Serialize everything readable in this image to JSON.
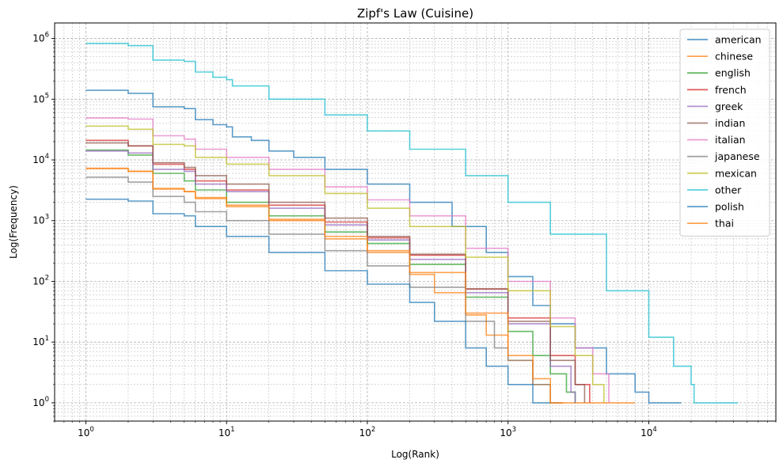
{
  "chart_data": {
    "type": "line",
    "title": "Zipf's Law (Cuisine)",
    "xlabel": "Log(Rank)",
    "ylabel": "Log(Frequency)",
    "x_scale": "log",
    "y_scale": "log",
    "xlim": [
      0.6,
      80000
    ],
    "ylim": [
      0.5,
      1800000
    ],
    "x_ticks": [
      {
        "value": 1,
        "base": "10",
        "exp": "0"
      },
      {
        "value": 10,
        "base": "10",
        "exp": "1"
      },
      {
        "value": 100,
        "base": "10",
        "exp": "2"
      },
      {
        "value": 1000,
        "base": "10",
        "exp": "3"
      },
      {
        "value": 10000,
        "base": "10",
        "exp": "4"
      }
    ],
    "y_ticks": [
      {
        "value": 1,
        "base": "10",
        "exp": "0"
      },
      {
        "value": 10,
        "base": "10",
        "exp": "1"
      },
      {
        "value": 100,
        "base": "10",
        "exp": "2"
      },
      {
        "value": 1000,
        "base": "10",
        "exp": "3"
      },
      {
        "value": 10000,
        "base": "10",
        "exp": "4"
      },
      {
        "value": 100000,
        "base": "10",
        "exp": "5"
      },
      {
        "value": 1000000,
        "base": "10",
        "exp": "6"
      }
    ],
    "grid": "major and minor, dashed",
    "legend_position": "top-right",
    "series": [
      {
        "name": "american",
        "color": "#1f77b4",
        "points": [
          [
            1,
            140000
          ],
          [
            2,
            125000
          ],
          [
            3,
            75000
          ],
          [
            5,
            70000
          ],
          [
            6,
            46000
          ],
          [
            8,
            38000
          ],
          [
            10,
            35000
          ],
          [
            11,
            24000
          ],
          [
            15,
            21000
          ],
          [
            20,
            14000
          ],
          [
            30,
            11000
          ],
          [
            50,
            7000
          ],
          [
            100,
            4000
          ],
          [
            200,
            2000
          ],
          [
            400,
            800
          ],
          [
            700,
            300
          ],
          [
            1000,
            120
          ],
          [
            1500,
            40
          ],
          [
            2000,
            20
          ],
          [
            3000,
            8
          ],
          [
            5000,
            3
          ],
          [
            8000,
            1.5
          ],
          [
            10000,
            1
          ],
          [
            17000,
            1
          ]
        ]
      },
      {
        "name": "chinese",
        "color": "#ff7f0e",
        "points": [
          [
            1,
            7200
          ],
          [
            2,
            6500
          ],
          [
            3,
            3300
          ],
          [
            5,
            3000
          ],
          [
            6,
            2300
          ],
          [
            10,
            1700
          ],
          [
            20,
            1000
          ],
          [
            50,
            500
          ],
          [
            100,
            300
          ],
          [
            200,
            130
          ],
          [
            300,
            65
          ],
          [
            500,
            28
          ],
          [
            700,
            13
          ],
          [
            1000,
            5
          ],
          [
            1500,
            2
          ],
          [
            2000,
            1
          ],
          [
            8000,
            1
          ]
        ]
      },
      {
        "name": "english",
        "color": "#2ca02c",
        "points": [
          [
            1,
            14500
          ],
          [
            2,
            12000
          ],
          [
            3,
            6000
          ],
          [
            5,
            4500
          ],
          [
            6,
            3200
          ],
          [
            10,
            2000
          ],
          [
            20,
            1200
          ],
          [
            50,
            650
          ],
          [
            100,
            420
          ],
          [
            200,
            190
          ],
          [
            500,
            55
          ],
          [
            1000,
            15
          ],
          [
            1500,
            6
          ],
          [
            2000,
            3
          ],
          [
            2600,
            1.5
          ],
          [
            3000,
            1
          ]
        ]
      },
      {
        "name": "french",
        "color": "#d62728",
        "points": [
          [
            1,
            21000
          ],
          [
            2,
            17000
          ],
          [
            3,
            8500
          ],
          [
            5,
            7000
          ],
          [
            6,
            4500
          ],
          [
            10,
            3200
          ],
          [
            20,
            1800
          ],
          [
            50,
            950
          ],
          [
            100,
            520
          ],
          [
            200,
            270
          ],
          [
            500,
            75
          ],
          [
            1000,
            25
          ],
          [
            2000,
            6
          ],
          [
            3000,
            2
          ],
          [
            3800,
            1
          ]
        ]
      },
      {
        "name": "greek",
        "color": "#9467bd",
        "points": [
          [
            1,
            14000
          ],
          [
            2,
            13000
          ],
          [
            3,
            7000
          ],
          [
            5,
            6500
          ],
          [
            6,
            4000
          ],
          [
            10,
            3000
          ],
          [
            20,
            1600
          ],
          [
            50,
            850
          ],
          [
            100,
            480
          ],
          [
            200,
            230
          ],
          [
            500,
            65
          ],
          [
            1000,
            20
          ],
          [
            2000,
            4
          ],
          [
            2800,
            1.5
          ],
          [
            3000,
            1
          ]
        ]
      },
      {
        "name": "indian",
        "color": "#8c564b",
        "points": [
          [
            1,
            19000
          ],
          [
            2,
            17000
          ],
          [
            3,
            9000
          ],
          [
            5,
            7500
          ],
          [
            6,
            5500
          ],
          [
            10,
            4000
          ],
          [
            20,
            2000
          ],
          [
            50,
            1100
          ],
          [
            100,
            550
          ],
          [
            200,
            280
          ],
          [
            500,
            75
          ],
          [
            1000,
            22
          ],
          [
            2000,
            5
          ],
          [
            3000,
            2
          ],
          [
            3500,
            1
          ]
        ]
      },
      {
        "name": "italian",
        "color": "#e377c2",
        "points": [
          [
            1,
            49000
          ],
          [
            2,
            47000
          ],
          [
            3,
            25000
          ],
          [
            5,
            22000
          ],
          [
            6,
            15000
          ],
          [
            10,
            11000
          ],
          [
            20,
            7000
          ],
          [
            50,
            3600
          ],
          [
            100,
            2200
          ],
          [
            200,
            1200
          ],
          [
            500,
            350
          ],
          [
            1000,
            100
          ],
          [
            2000,
            25
          ],
          [
            3000,
            8
          ],
          [
            4000,
            3
          ],
          [
            5200,
            1
          ]
        ]
      },
      {
        "name": "japanese",
        "color": "#7f7f7f",
        "points": [
          [
            1,
            5200
          ],
          [
            2,
            4300
          ],
          [
            3,
            2500
          ],
          [
            5,
            2000
          ],
          [
            6,
            1400
          ],
          [
            10,
            1000
          ],
          [
            20,
            600
          ],
          [
            50,
            320
          ],
          [
            100,
            180
          ],
          [
            200,
            80
          ],
          [
            500,
            22
          ],
          [
            800,
            8
          ],
          [
            1000,
            5
          ],
          [
            1500,
            2
          ],
          [
            2000,
            1
          ],
          [
            2400,
            1
          ]
        ]
      },
      {
        "name": "mexican",
        "color": "#bcbd22",
        "points": [
          [
            1,
            36000
          ],
          [
            2,
            32000
          ],
          [
            3,
            18000
          ],
          [
            5,
            17000
          ],
          [
            6,
            11000
          ],
          [
            10,
            8500
          ],
          [
            20,
            5500
          ],
          [
            50,
            2800
          ],
          [
            100,
            1600
          ],
          [
            200,
            800
          ],
          [
            500,
            250
          ],
          [
            1000,
            70
          ],
          [
            2000,
            18
          ],
          [
            3000,
            6
          ],
          [
            4000,
            2
          ],
          [
            4800,
            1
          ]
        ]
      },
      {
        "name": "other",
        "color": "#17becf",
        "points": [
          [
            1,
            830000
          ],
          [
            2,
            760000
          ],
          [
            3,
            440000
          ],
          [
            5,
            420000
          ],
          [
            6,
            280000
          ],
          [
            8,
            230000
          ],
          [
            10,
            210000
          ],
          [
            11,
            165000
          ],
          [
            20,
            100000
          ],
          [
            50,
            55000
          ],
          [
            100,
            30000
          ],
          [
            200,
            15000
          ],
          [
            500,
            5500
          ],
          [
            1000,
            2000
          ],
          [
            2000,
            600
          ],
          [
            5000,
            70
          ],
          [
            10000,
            12
          ],
          [
            15000,
            4
          ],
          [
            20000,
            2
          ],
          [
            21000,
            1
          ],
          [
            43000,
            1
          ]
        ]
      },
      {
        "name": "polish",
        "color": "#1f77b4",
        "points": [
          [
            1,
            2250
          ],
          [
            2,
            2100
          ],
          [
            3,
            1300
          ],
          [
            5,
            1200
          ],
          [
            6,
            800
          ],
          [
            10,
            550
          ],
          [
            20,
            300
          ],
          [
            50,
            150
          ],
          [
            100,
            90
          ],
          [
            200,
            45
          ],
          [
            300,
            22
          ],
          [
            500,
            8
          ],
          [
            700,
            4
          ],
          [
            1000,
            2
          ],
          [
            1500,
            1
          ],
          [
            2000,
            1
          ]
        ]
      },
      {
        "name": "thai",
        "color": "#ff7f0e",
        "points": [
          [
            1,
            7300
          ],
          [
            2,
            6500
          ],
          [
            3,
            3400
          ],
          [
            5,
            3000
          ],
          [
            6,
            2400
          ],
          [
            10,
            1800
          ],
          [
            20,
            1050
          ],
          [
            50,
            550
          ],
          [
            100,
            320
          ],
          [
            200,
            140
          ],
          [
            500,
            30
          ],
          [
            1000,
            6
          ],
          [
            1500,
            2.5
          ],
          [
            2000,
            1
          ],
          [
            2500,
            1
          ]
        ]
      }
    ]
  }
}
